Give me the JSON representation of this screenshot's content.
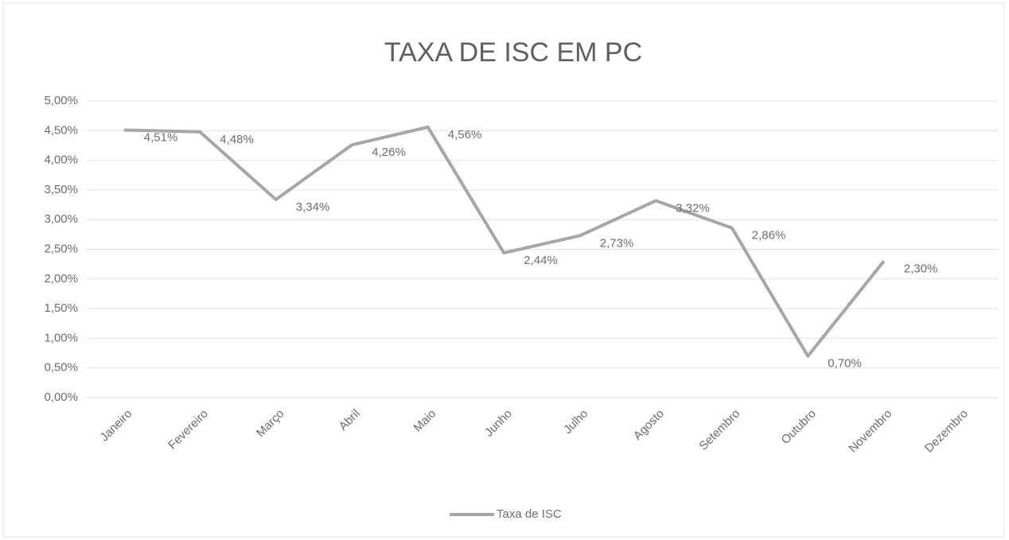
{
  "chart_data": {
    "type": "line",
    "title": "TAXA DE ISC EM PC",
    "categories": [
      "Janeiro",
      "Fevereiro",
      "Março",
      "Abril",
      "Maio",
      "Junho",
      "Julho",
      "Agosto",
      "Setembro",
      "Outubro",
      "Novembro",
      "Dezembro"
    ],
    "series": [
      {
        "name": "Taxa de ISC",
        "color": "#a6a6a6",
        "values": [
          4.51,
          4.48,
          3.34,
          4.26,
          4.56,
          2.44,
          2.73,
          3.32,
          2.86,
          0.7,
          2.3,
          null
        ],
        "value_labels": [
          "4,51%",
          "4,48%",
          "3,34%",
          "4,26%",
          "4,56%",
          "2,44%",
          "2,73%",
          "3,32%",
          "2,86%",
          "0,70%",
          "2,30%",
          null
        ]
      }
    ],
    "ylim": [
      0,
      5
    ],
    "yticks": [
      {
        "value": 0,
        "label": "0,00%"
      },
      {
        "value": 0.5,
        "label": "0,50%"
      },
      {
        "value": 1,
        "label": "1,00%"
      },
      {
        "value": 1.5,
        "label": "1,50%"
      },
      {
        "value": 2,
        "label": "2,00%"
      },
      {
        "value": 2.5,
        "label": "2,50%"
      },
      {
        "value": 3,
        "label": "3,00%"
      },
      {
        "value": 3.5,
        "label": "3,50%"
      },
      {
        "value": 4,
        "label": "4,00%"
      },
      {
        "value": 4.5,
        "label": "4,50%"
      },
      {
        "value": 5,
        "label": "5,00%"
      }
    ],
    "grid": true,
    "legend": "bottom"
  }
}
